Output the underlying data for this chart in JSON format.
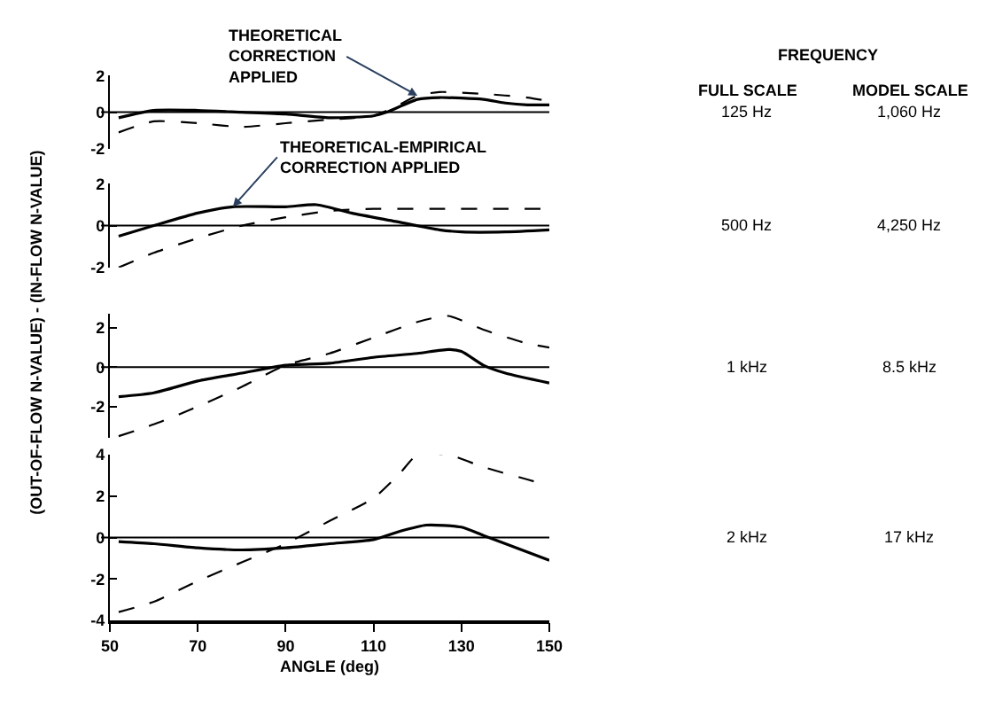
{
  "chart_data": [
    {
      "type": "line",
      "ylabel": "(OUT-OF-FLOW N-VALUE) - (IN-FLOW N-VALUE)",
      "xlim": [
        50,
        150
      ],
      "ylim": [
        -2,
        2
      ],
      "yticks": [
        -2,
        0,
        2
      ],
      "tick_labels": "y",
      "ref_lines": [
        {
          "axis": "y",
          "value": 0,
          "color": "#000000"
        }
      ],
      "annotations": [
        {
          "text": "THEORETICAL\nCORRECTION\nAPPLIED",
          "x": 120,
          "y": 0.9
        },
        "FREQUENCY",
        "FULL SCALE",
        "MODEL SCALE",
        "125 Hz",
        "1,060 Hz"
      ],
      "series": [
        {
          "color": "#000000",
          "line_style": "solid",
          "x": [
            52,
            60,
            70,
            80,
            90,
            100,
            110,
            113,
            120,
            125,
            135,
            140,
            145,
            150
          ],
          "values": [
            -0.3,
            0.1,
            0.1,
            0,
            -0.1,
            -0.3,
            -0.2,
            0,
            0.7,
            0.8,
            0.7,
            0.5,
            0.4,
            0.4
          ]
        },
        {
          "color": "#000000",
          "line_style": "dashed",
          "x": [
            52,
            60,
            70,
            80,
            90,
            100,
            110,
            115,
            120,
            125,
            135,
            145,
            150
          ],
          "values": [
            -1.1,
            -0.5,
            -0.6,
            -0.8,
            -0.6,
            -0.4,
            -0.2,
            0.3,
            0.9,
            1.1,
            1.0,
            0.8,
            0.6
          ]
        }
      ]
    },
    {
      "type": "line",
      "xlim": [
        50,
        150
      ],
      "ylim": [
        -2,
        2
      ],
      "yticks": [
        -2,
        0,
        2
      ],
      "tick_labels": "y",
      "ref_lines": [
        {
          "axis": "y",
          "value": 0,
          "color": "#000000"
        }
      ],
      "annotations": [
        {
          "text": "THEORETICAL-EMPIRICAL\nCORRECTION APPLIED",
          "x": 78,
          "y": 0.9
        },
        "500 Hz",
        "4,250 Hz"
      ],
      "series": [
        {
          "color": "#000000",
          "line_style": "solid",
          "x": [
            52,
            60,
            70,
            78,
            90,
            97,
            105,
            115,
            125,
            130,
            140,
            150
          ],
          "values": [
            -0.5,
            0,
            0.6,
            0.9,
            0.9,
            1.0,
            0.6,
            0.2,
            -0.2,
            -0.3,
            -0.3,
            -0.2
          ]
        },
        {
          "color": "#000000",
          "line_style": "dashed",
          "x": [
            52,
            60,
            70,
            80,
            90,
            100,
            110,
            125,
            140,
            150
          ],
          "values": [
            -2.0,
            -1.3,
            -0.6,
            0,
            0.4,
            0.7,
            0.8,
            0.8,
            0.8,
            0.8
          ]
        }
      ]
    },
    {
      "type": "line",
      "xlim": [
        50,
        150
      ],
      "ylim": [
        -3.6,
        2.7
      ],
      "yticks": [
        -2,
        0,
        2
      ],
      "tick_labels": "y",
      "ref_lines": [
        {
          "axis": "y",
          "value": 0,
          "color": "#000000"
        }
      ],
      "annotations": [
        "1 kHz",
        "8.5 kHz"
      ],
      "series": [
        {
          "color": "#000000",
          "line_style": "solid",
          "x": [
            52,
            60,
            70,
            80,
            90,
            100,
            110,
            120,
            127,
            130,
            135,
            140,
            150
          ],
          "values": [
            -1.5,
            -1.3,
            -0.7,
            -0.3,
            0.1,
            0.2,
            0.5,
            0.7,
            0.9,
            0.8,
            0.1,
            -0.3,
            -0.8
          ]
        },
        {
          "color": "#000000",
          "line_style": "dashed",
          "x": [
            52,
            60,
            70,
            80,
            90,
            100,
            110,
            120,
            127,
            135,
            145,
            150
          ],
          "values": [
            -3.5,
            -2.9,
            -2.0,
            -1.0,
            0.1,
            0.7,
            1.5,
            2.3,
            2.6,
            1.9,
            1.2,
            1.0
          ]
        }
      ]
    },
    {
      "type": "line",
      "xlabel": "ANGLE (deg)",
      "xlim": [
        50,
        150
      ],
      "xticks": [
        50,
        70,
        90,
        110,
        130,
        150
      ],
      "ylim": [
        -4,
        4
      ],
      "yticks": [
        -4,
        -2,
        0,
        2,
        4
      ],
      "ref_lines": [
        {
          "axis": "y",
          "value": 0,
          "color": "#000000"
        }
      ],
      "annotations": [
        "2 kHz",
        "17 kHz"
      ],
      "series": [
        {
          "color": "#000000",
          "line_style": "solid",
          "x": [
            52,
            60,
            70,
            80,
            90,
            100,
            110,
            116,
            122,
            130,
            135,
            140,
            150
          ],
          "values": [
            -0.2,
            -0.3,
            -0.5,
            -0.6,
            -0.5,
            -0.3,
            -0.1,
            0.3,
            0.6,
            0.5,
            0.1,
            -0.3,
            -1.1
          ]
        },
        {
          "color": "#000000",
          "line_style": "dashed",
          "x": [
            52,
            60,
            70,
            80,
            90,
            100,
            110,
            116,
            120,
            127,
            135,
            145,
            150
          ],
          "values": [
            -3.6,
            -3.1,
            -2.1,
            -1.2,
            -0.3,
            0.8,
            1.9,
            3.1,
            4.0,
            4.0,
            3.4,
            2.8,
            2.5
          ]
        }
      ]
    }
  ]
}
